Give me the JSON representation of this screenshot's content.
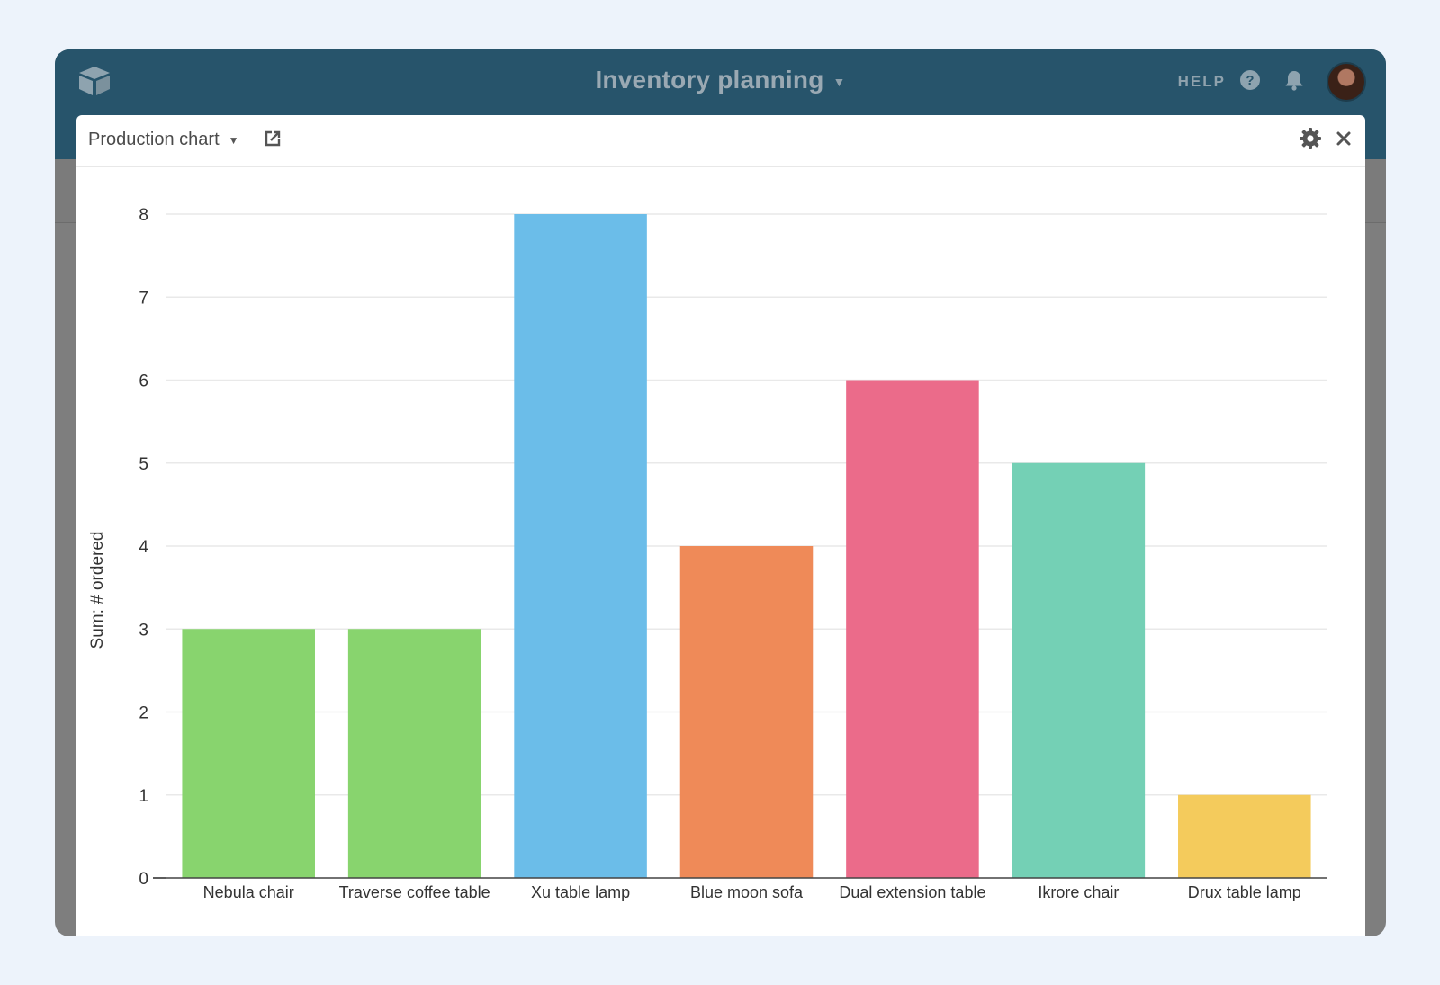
{
  "header": {
    "base_title": "Inventory planning",
    "help_label": "HELP",
    "logo_icon": "cube-logo-icon",
    "help_icon": "question-circle-icon",
    "notification_icon": "bell-icon"
  },
  "panel": {
    "chart_name": "Production chart",
    "open_icon": "external-link-icon",
    "settings_icon": "gear-icon",
    "close_icon": "close-icon"
  },
  "chart_data": {
    "type": "bar",
    "ylabel": "Sum: # ordered",
    "xlabel": "",
    "ylim": [
      0,
      8
    ],
    "yticks": [
      0,
      1,
      2,
      3,
      4,
      5,
      6,
      7,
      8
    ],
    "grid": true,
    "categories": [
      "Nebula chair",
      "Traverse coffee table",
      "Xu table lamp",
      "Blue moon sofa",
      "Dual extension table",
      "Ikrore chair",
      "Drux table lamp"
    ],
    "values": [
      3,
      3,
      8,
      4,
      6,
      5,
      1
    ],
    "colors": [
      "#88d46e",
      "#88d46e",
      "#6bbde9",
      "#ef8a58",
      "#eb6b8a",
      "#74d0b5",
      "#f4cb5c"
    ]
  }
}
